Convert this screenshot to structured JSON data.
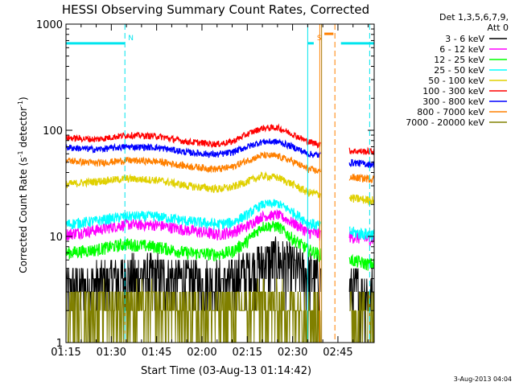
{
  "chart_data": {
    "type": "line",
    "title": "HESSI Observing Summary Count Rates, Corrected",
    "xlabel": "Start Time (03-Aug-13 01:14:42)",
    "ylabel": "Corrected Count Rate (s",
    "ylabel_sup1": "-1",
    "ylabel_mid": " detector",
    "ylabel_sup2": "-1",
    "ylabel_end": ")",
    "x_unit": "minutes after 01:15 UT",
    "xlim": [
      0,
      102
    ],
    "ylim": [
      1,
      1000
    ],
    "yscale": "log",
    "grid": false,
    "x_ticks": [
      0,
      15,
      30,
      45,
      60,
      75,
      90
    ],
    "x_tick_labels": [
      "01:15",
      "01:30",
      "01:45",
      "02:00",
      "02:15",
      "02:30",
      "02:45"
    ],
    "y_ticks": [
      1,
      10,
      100,
      1000
    ],
    "y_tick_labels": [
      "1",
      "10",
      "100",
      "1000"
    ],
    "legend_placement": "right",
    "legend_header": [
      "Det 1,3,5,6,7,9,",
      "Att 0"
    ],
    "timestamp": "3-Aug-2013 04:04",
    "bars": [
      {
        "label": "N",
        "start": 0,
        "end": 19.5,
        "y": 660,
        "color": "#00e5ee"
      },
      {
        "label": "",
        "start": 91,
        "end": 102,
        "y": 660,
        "color": "#00e5ee"
      },
      {
        "label": "S",
        "start": 80,
        "end": 82,
        "y": 660,
        "color": "#00e5ee"
      },
      {
        "label": "",
        "start": 85.5,
        "end": 88.5,
        "y": 810,
        "color": "#ff8000"
      }
    ],
    "markers": [
      {
        "x": 19.5,
        "color": "#00e5ee",
        "dash": true
      },
      {
        "x": 80,
        "color": "#00e5ee",
        "dash": false
      },
      {
        "x": 84,
        "color": "#ff8000",
        "dash": false
      },
      {
        "x": 84.6,
        "color": "#aa7700",
        "dash": false
      },
      {
        "x": 89,
        "color": "#ff8000",
        "dash": true
      },
      {
        "x": 100.5,
        "color": "#00e5ee",
        "dash": true
      },
      {
        "x": 102,
        "color": "#00e5ee",
        "dash": false
      }
    ],
    "gap": [
      84.3,
      93.8
    ],
    "series": [
      {
        "name": "3 - 6 keV",
        "color": "#000000",
        "x": [
          0,
          10,
          20,
          30,
          40,
          50,
          55,
          60,
          65,
          70,
          75,
          80,
          84,
          94,
          100
        ],
        "y": [
          2.9,
          3.3,
          3.8,
          3.9,
          3.5,
          3.3,
          3.6,
          4.3,
          5.2,
          5.6,
          4.8,
          4.0,
          3.8,
          2.9,
          2.8
        ]
      },
      {
        "name": "6 - 12 keV",
        "color": "#ff00ff",
        "x": [
          0,
          10,
          20,
          30,
          40,
          50,
          55,
          60,
          65,
          70,
          75,
          80,
          84,
          94,
          100
        ],
        "y": [
          10.5,
          11.5,
          13.0,
          12.8,
          11.5,
          10.5,
          11.0,
          12.5,
          15.5,
          16.0,
          13.5,
          11.0,
          10.5,
          10.0,
          9.5
        ]
      },
      {
        "name": "12 - 25 keV",
        "color": "#00ff00",
        "x": [
          0,
          10,
          20,
          30,
          40,
          50,
          55,
          60,
          65,
          70,
          75,
          80,
          84,
          94,
          100
        ],
        "y": [
          7.0,
          7.5,
          8.5,
          8.0,
          7.0,
          6.8,
          7.2,
          9.0,
          12.5,
          12.5,
          9.5,
          7.5,
          6.8,
          6.0,
          5.5
        ]
      },
      {
        "name": "25 - 50 keV",
        "color": "#00ffff",
        "x": [
          0,
          10,
          20,
          30,
          40,
          50,
          55,
          60,
          65,
          70,
          75,
          80,
          84,
          94,
          100
        ],
        "y": [
          13.0,
          14.0,
          15.5,
          15.5,
          14.0,
          13.0,
          13.5,
          16.0,
          20.0,
          20.5,
          17.0,
          13.5,
          12.5,
          11.0,
          10.5
        ]
      },
      {
        "name": "50 - 100 keV",
        "color": "#e0d000",
        "x": [
          0,
          10,
          20,
          30,
          40,
          50,
          55,
          60,
          65,
          70,
          75,
          80,
          84,
          94,
          100
        ],
        "y": [
          31,
          33,
          35,
          34,
          30,
          28,
          29,
          33,
          37,
          36,
          31,
          26,
          25,
          23,
          22
        ]
      },
      {
        "name": "100 - 300 keV",
        "color": "#ff0000",
        "x": [
          0,
          10,
          20,
          30,
          40,
          50,
          55,
          60,
          65,
          70,
          75,
          80,
          84,
          94,
          100
        ],
        "y": [
          85,
          82,
          90,
          88,
          78,
          74,
          78,
          92,
          105,
          106,
          92,
          78,
          74,
          64,
          63
        ]
      },
      {
        "name": "300 - 800 keV",
        "color": "#0000ff",
        "x": [
          0,
          10,
          20,
          30,
          40,
          50,
          55,
          60,
          65,
          70,
          75,
          80,
          84,
          94,
          100
        ],
        "y": [
          69,
          66,
          70,
          69,
          62,
          59,
          62,
          70,
          78,
          78,
          70,
          60,
          58,
          50,
          48
        ]
      },
      {
        "name": "800 - 7000 keV",
        "color": "#ff8000",
        "x": [
          0,
          10,
          20,
          30,
          40,
          50,
          55,
          60,
          65,
          70,
          75,
          80,
          84,
          94,
          100
        ],
        "y": [
          52,
          49,
          52,
          51,
          46,
          43,
          45,
          52,
          58,
          57,
          51,
          43,
          41,
          36,
          35
        ]
      },
      {
        "name": "7000 - 20000 keV",
        "color": "#808000",
        "x": [
          0,
          10,
          20,
          30,
          40,
          50,
          55,
          60,
          65,
          70,
          75,
          80,
          84,
          94,
          100
        ],
        "y": [
          1.8,
          2.0,
          2.1,
          2.0,
          1.9,
          1.8,
          1.9,
          2.0,
          2.2,
          2.1,
          2.0,
          1.9,
          1.8,
          1.7,
          1.7
        ]
      }
    ]
  }
}
